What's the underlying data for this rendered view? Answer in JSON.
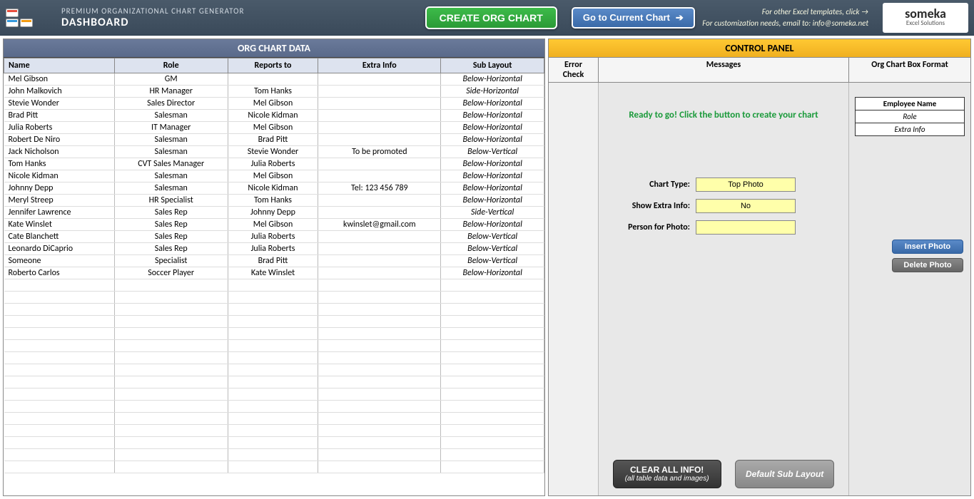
{
  "header": {
    "subtitle": "PREMIUM ORGANIZATIONAL CHART GENERATOR",
    "title": "DASHBOARD",
    "create_btn": "CREATE ORG CHART",
    "goto_btn": "Go to Current Chart",
    "link_text": "For other Excel templates, click →",
    "email_text": "For customization needs, email to: info@someka.net",
    "logo_name": "someka",
    "logo_tag": "Excel Solutions"
  },
  "left": {
    "section_title": "ORG CHART DATA",
    "columns": [
      "Name",
      "Role",
      "Reports to",
      "Extra Info",
      "Sub Layout"
    ],
    "rows": [
      [
        "Mel Gibson",
        "GM",
        "",
        "",
        "Below-Horizontal"
      ],
      [
        "John Malkovich",
        "HR Manager",
        "Tom Hanks",
        "",
        "Side-Horizontal"
      ],
      [
        "Stevie Wonder",
        "Sales Director",
        "Mel Gibson",
        "",
        "Below-Horizontal"
      ],
      [
        "Brad Pitt",
        "Salesman",
        "Nicole Kidman",
        "",
        "Below-Horizontal"
      ],
      [
        "Julia Roberts",
        "IT Manager",
        "Mel Gibson",
        "",
        "Below-Horizontal"
      ],
      [
        "Robert De Niro",
        "Salesman",
        "Brad Pitt",
        "",
        "Below-Horizontal"
      ],
      [
        "Jack Nicholson",
        "Salesman",
        "Stevie Wonder",
        "To be promoted",
        "Below-Vertical"
      ],
      [
        "Tom Hanks",
        "CVT Sales Manager",
        "Julia Roberts",
        "",
        "Below-Horizontal"
      ],
      [
        "Nicole Kidman",
        "Salesman",
        "Mel Gibson",
        "",
        "Below-Horizontal"
      ],
      [
        "Johnny Depp",
        "Salesman",
        "Nicole Kidman",
        "Tel: 123 456 789",
        "Below-Horizontal"
      ],
      [
        "Meryl Streep",
        "HR Specialist",
        "Tom Hanks",
        "",
        "Below-Horizontal"
      ],
      [
        "Jennifer Lawrence",
        "Sales Rep",
        "Johnny Depp",
        "",
        "Side-Vertical"
      ],
      [
        "Kate Winslet",
        "Sales Rep",
        "Mel Gibson",
        "kwinslet@gmail.com",
        "Below-Horizontal"
      ],
      [
        "Cate Blanchett",
        "Sales Rep",
        "Julia Roberts",
        "",
        "Below-Vertical"
      ],
      [
        "Leonardo DiCaprio",
        "Sales Rep",
        "Julia Roberts",
        "",
        "Below-Vertical"
      ],
      [
        "Someone",
        "Specialist",
        "Brad Pitt",
        "",
        "Below-Vertical"
      ],
      [
        "Roberto Carlos",
        "Soccer Player",
        "Kate Winslet",
        "",
        "Below-Horizontal"
      ]
    ],
    "empty_rows": 16
  },
  "right": {
    "panel_title": "CONTROL PANEL",
    "col_error": "Error Check",
    "col_messages": "Messages",
    "col_box": "Org Chart Box Format",
    "ready_msg": "Ready to go! Click the button to create your chart",
    "box_preview": {
      "name": "Employee Name",
      "role": "Role",
      "extra": "Extra Info"
    },
    "chart_type_label": "Chart Type:",
    "chart_type_value": "Top Photo",
    "show_extra_label": "Show Extra Info:",
    "show_extra_value": "No",
    "person_photo_label": "Person for Photo:",
    "person_photo_value": "",
    "insert_photo_btn": "Insert Photo",
    "delete_photo_btn": "Delete Photo",
    "clear_btn": "CLEAR ALL INFO!",
    "clear_sub": "(all table data and images)",
    "default_btn": "Default Sub Layout"
  }
}
